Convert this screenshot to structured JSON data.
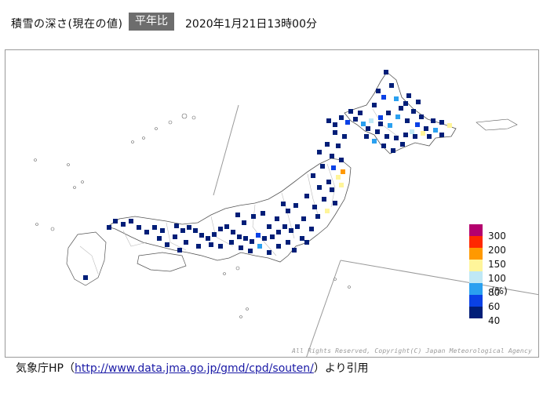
{
  "header": {
    "title": "積雪の深さ(現在の値)",
    "badge": "平年比",
    "datetime": "2020年1月21日13時00分"
  },
  "legend": {
    "items": [
      {
        "label": "300",
        "color": "#b4006e"
      },
      {
        "label": "200",
        "color": "#ff2800"
      },
      {
        "label": "150",
        "color": "#ff9900"
      },
      {
        "label": "100",
        "color": "#fff59a"
      },
      {
        "label": "80",
        "color": "#bfe8f5"
      },
      {
        "label": "60",
        "color": "#2aa0f0"
      },
      {
        "label": "40",
        "color": "#0a41e6"
      },
      {
        "label": "",
        "color": "#001e78"
      }
    ],
    "unit": "(%)"
  },
  "copyright": "All Rights Reserved, Copyright(C) Japan Meteorological Agency",
  "footer": {
    "prefix": "気象庁HP（",
    "link": "http://www.data.jma.go.jp/gmd/cpd/souten/",
    "suffix": "）より引用"
  }
}
